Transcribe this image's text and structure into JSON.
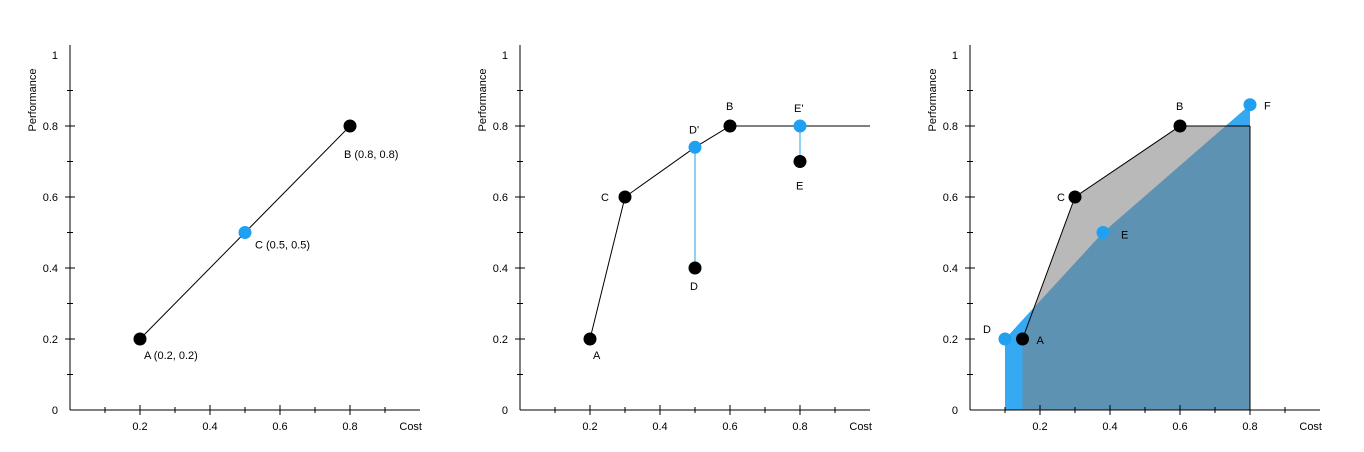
{
  "chart_data": [
    {
      "type": "scatter",
      "title": "",
      "xlabel": "Cost",
      "ylabel": "Performance",
      "xlim": [
        0,
        1
      ],
      "ylim": [
        0,
        1
      ],
      "x_ticks": [
        "0.2",
        "0.4",
        "0.6",
        "0.8"
      ],
      "y_ticks": [
        "0",
        "0.2",
        "0.4",
        "0.6",
        "0.8",
        "1"
      ],
      "points": [
        {
          "x": 0.2,
          "y": 0.2,
          "label": "A (0.2, 0.2)",
          "color": "#000000"
        },
        {
          "x": 0.8,
          "y": 0.8,
          "label": "B (0.8, 0.8)",
          "color": "#000000"
        },
        {
          "x": 0.5,
          "y": 0.5,
          "label": "C (0.5, 0.5)",
          "color": "#1fa0f0"
        }
      ],
      "lines": [
        {
          "from": "A",
          "to": "B",
          "color": "#000000"
        }
      ]
    },
    {
      "type": "line",
      "title": "",
      "xlabel": "Cost",
      "ylabel": "Performance",
      "xlim": [
        0,
        1
      ],
      "ylim": [
        0,
        1
      ],
      "x_ticks": [
        "0.2",
        "0.4",
        "0.6",
        "0.8"
      ],
      "y_ticks": [
        "0",
        "0.2",
        "0.4",
        "0.6",
        "0.8",
        "1"
      ],
      "frontier": [
        [
          0.2,
          0.2
        ],
        [
          0.3,
          0.6
        ],
        [
          0.5,
          0.74
        ],
        [
          0.6,
          0.8
        ],
        [
          1.0,
          0.8
        ]
      ],
      "points": [
        {
          "x": 0.2,
          "y": 0.2,
          "label": "A",
          "color": "#000000"
        },
        {
          "x": 0.3,
          "y": 0.6,
          "label": "C",
          "color": "#000000"
        },
        {
          "x": 0.6,
          "y": 0.8,
          "label": "B",
          "color": "#000000"
        },
        {
          "x": 0.5,
          "y": 0.4,
          "label": "D",
          "color": "#000000"
        },
        {
          "x": 0.8,
          "y": 0.7,
          "label": "E",
          "color": "#000000"
        },
        {
          "x": 0.5,
          "y": 0.74,
          "label": "D'",
          "color": "#1fa0f0"
        },
        {
          "x": 0.8,
          "y": 0.8,
          "label": "E'",
          "color": "#1fa0f0"
        }
      ],
      "projections": [
        {
          "from": "D",
          "to": "D'",
          "color": "#1fa0f0"
        },
        {
          "from": "E",
          "to": "E'",
          "color": "#1fa0f0"
        }
      ]
    },
    {
      "type": "area",
      "title": "",
      "xlabel": "Cost",
      "ylabel": "Performance",
      "xlim": [
        0,
        1
      ],
      "ylim": [
        0,
        1
      ],
      "x_ticks": [
        "0.2",
        "0.4",
        "0.6",
        "0.8"
      ],
      "y_ticks": [
        "0",
        "0.2",
        "0.4",
        "0.6",
        "0.8",
        "1"
      ],
      "black_frontier": [
        [
          0.15,
          0.2
        ],
        [
          0.3,
          0.6
        ],
        [
          0.6,
          0.8
        ],
        [
          0.8,
          0.8
        ]
      ],
      "blue_frontier": [
        [
          0.1,
          0.2
        ],
        [
          0.38,
          0.5
        ],
        [
          0.8,
          0.86
        ]
      ],
      "points": [
        {
          "x": 0.15,
          "y": 0.2,
          "label": "A",
          "color": "#000000"
        },
        {
          "x": 0.6,
          "y": 0.8,
          "label": "B",
          "color": "#000000"
        },
        {
          "x": 0.3,
          "y": 0.6,
          "label": "C",
          "color": "#000000"
        },
        {
          "x": 0.1,
          "y": 0.2,
          "label": "D",
          "color": "#1fa0f0"
        },
        {
          "x": 0.38,
          "y": 0.5,
          "label": "E",
          "color": "#1fa0f0"
        },
        {
          "x": 0.8,
          "y": 0.86,
          "label": "F",
          "color": "#1fa0f0"
        }
      ],
      "colors": {
        "black_area": "#7f7f7f",
        "blue_area": "#1fa0f0",
        "overlap": "#6f9bb6"
      }
    }
  ]
}
